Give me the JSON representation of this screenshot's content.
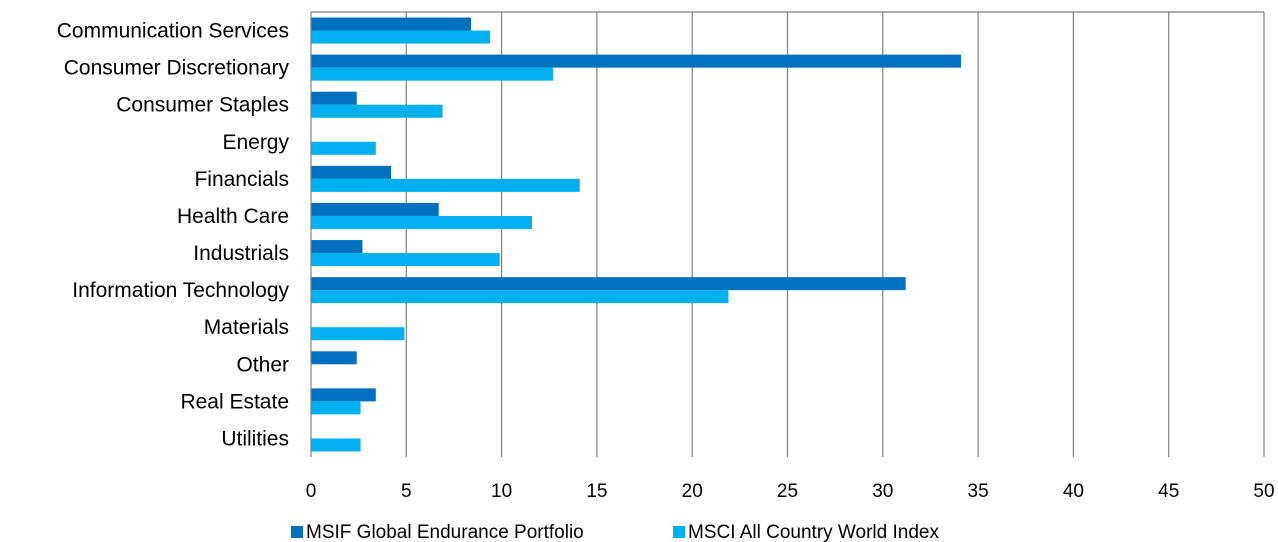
{
  "colors": {
    "series_1": "#0070C0",
    "series_2": "#00B0F0",
    "grid": "#7F7F7F",
    "axis": "#7F7F7F"
  },
  "chart_data": {
    "type": "bar",
    "orientation": "horizontal",
    "categories": [
      "Communication Services",
      "Consumer Discretionary",
      "Consumer Staples",
      "Energy",
      "Financials",
      "Health Care",
      "Industrials",
      "Information Technology",
      "Materials",
      "Other",
      "Real Estate",
      "Utilities"
    ],
    "series": [
      {
        "name": "MSIF Global Endurance Portfolio",
        "color": "#0070C0",
        "values": [
          8.4,
          34.1,
          2.4,
          0,
          4.2,
          6.7,
          2.7,
          31.2,
          0,
          2.4,
          3.4,
          0
        ]
      },
      {
        "name": "MSCI All Country World Index",
        "color": "#00B0F0",
        "values": [
          9.4,
          12.7,
          6.9,
          3.4,
          14.1,
          11.6,
          9.9,
          21.9,
          4.9,
          0,
          2.6,
          2.6
        ]
      }
    ],
    "xlim": [
      0,
      50
    ],
    "xticks": [
      "0",
      "5",
      "10",
      "15",
      "20",
      "25",
      "30",
      "35",
      "40",
      "45",
      "50"
    ],
    "grid": "vertical",
    "legend_position": "bottom"
  }
}
